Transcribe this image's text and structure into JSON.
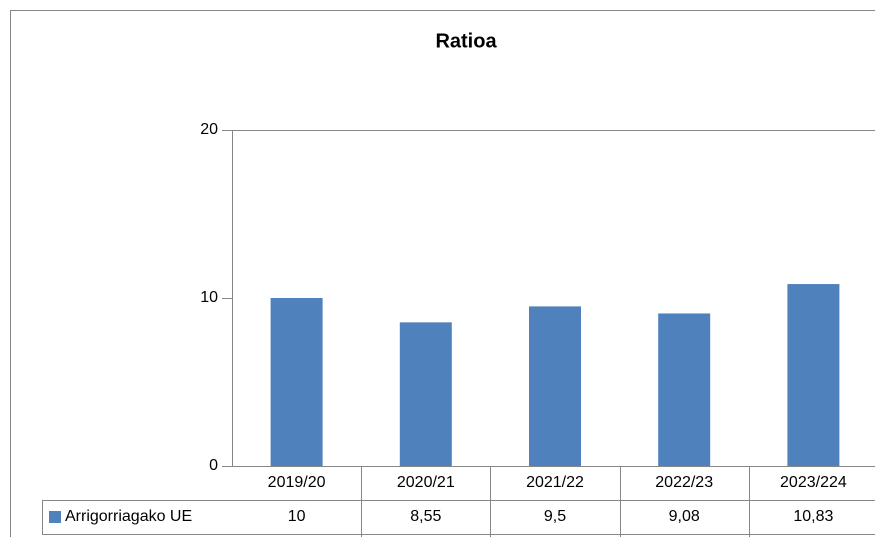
{
  "chart_data": {
    "type": "bar",
    "title": "Ratioa",
    "categories": [
      "2019/20",
      "2020/21",
      "2021/22",
      "2022/23",
      "2023/224"
    ],
    "series": [
      {
        "name": "Arrigorriagako UE",
        "color": "#4f81bd",
        "values": [
          10,
          8.55,
          9.5,
          9.08,
          10.83
        ],
        "value_labels": [
          "10",
          "8,55",
          "9,5",
          "9,08",
          "10,83"
        ]
      }
    ],
    "ylim": [
      0,
      20
    ],
    "yticks": [
      0,
      10,
      20
    ],
    "grid": false
  }
}
